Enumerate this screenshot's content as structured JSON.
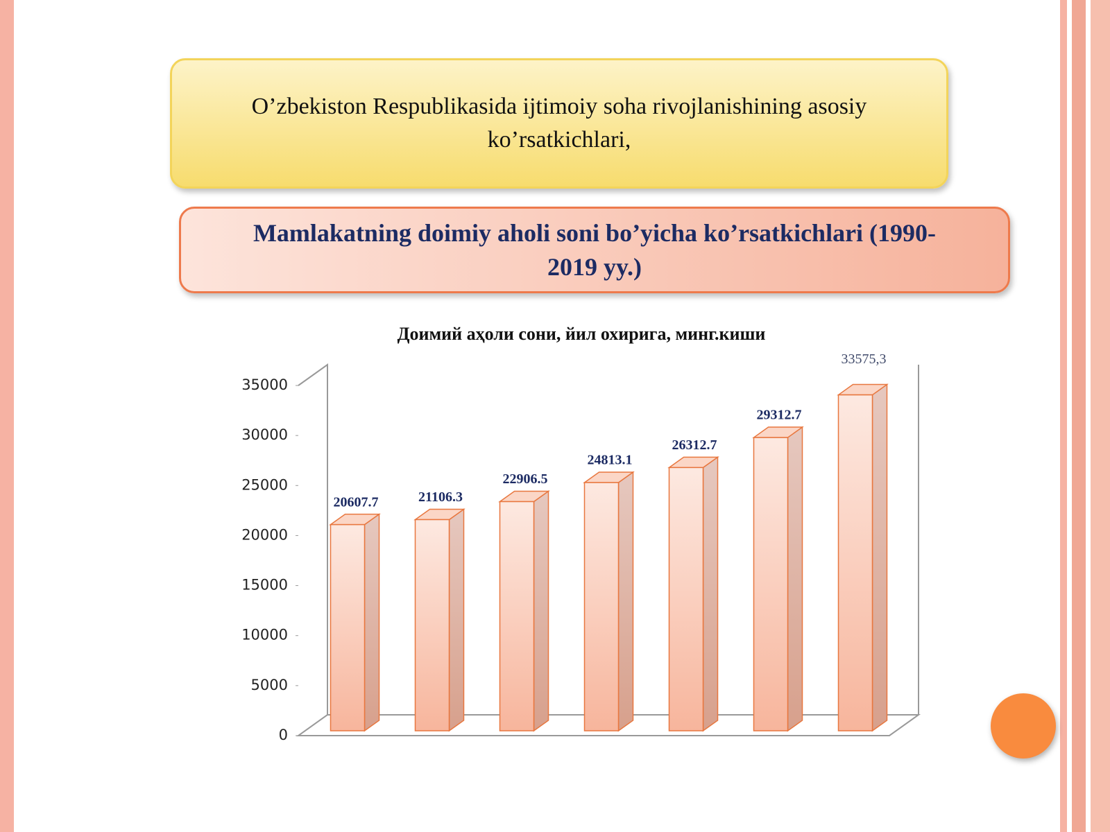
{
  "header": {
    "title": "O’zbekiston Respublikasida ijtimoiy soha rivojlanishining asosiy ko’rsatkichlari,",
    "subtitle": "Mamlakatning doimiy aholi soni bo’yicha ko’rsatkichlari (1990-2019 yy.)"
  },
  "chart_data": {
    "type": "bar3d",
    "title": "Доимий аҳоли сони, йил охирига, минг.киши",
    "categories": [
      null,
      null,
      null,
      null,
      null,
      null,
      null
    ],
    "values": [
      20607.7,
      21106.3,
      22906.5,
      24813.1,
      26312.7,
      29312.7,
      33575.3
    ],
    "value_labels": [
      "20607.7",
      "21106.3",
      "22906.5",
      "24813.1",
      "26312.7",
      "29312.7",
      "33575,3"
    ],
    "color": "#f7b9a0",
    "ylim": [
      0,
      35000
    ],
    "yticks": [
      0,
      5000,
      10000,
      15000,
      20000,
      25000,
      30000,
      35000
    ],
    "grid": false
  }
}
